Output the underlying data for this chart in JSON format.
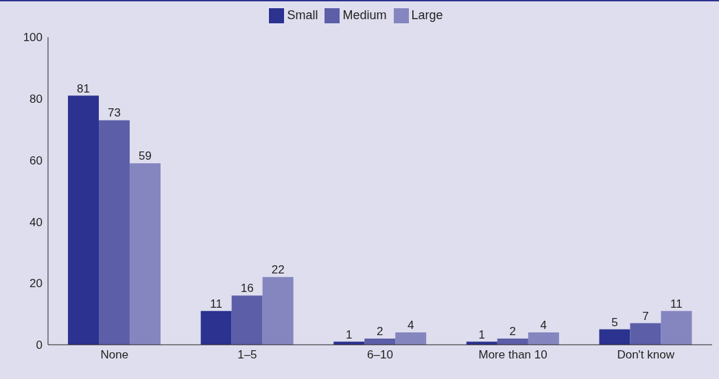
{
  "chart_data": {
    "type": "bar",
    "categories": [
      "None",
      "1–5",
      "6–10",
      "More than 10",
      "Don't know"
    ],
    "series": [
      {
        "name": "Small",
        "color": "#2b3290",
        "values": [
          81,
          11,
          1,
          1,
          5
        ]
      },
      {
        "name": "Medium",
        "color": "#5c5ea8",
        "values": [
          73,
          16,
          2,
          2,
          7
        ]
      },
      {
        "name": "Large",
        "color": "#8585c0",
        "values": [
          59,
          22,
          4,
          4,
          11
        ]
      }
    ],
    "ylim": [
      0,
      100
    ],
    "yticks": [
      0,
      20,
      40,
      60,
      80,
      100
    ],
    "grid": false,
    "legend": "top",
    "data_labels": true
  }
}
